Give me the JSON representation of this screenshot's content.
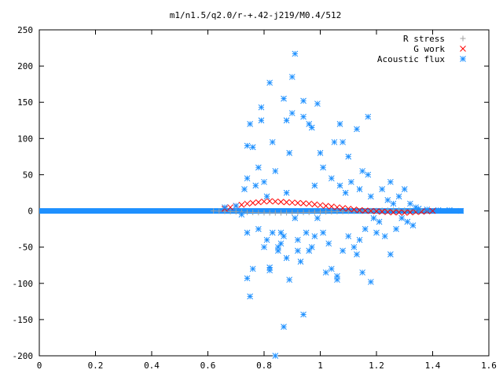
{
  "chart_data": {
    "type": "scatter",
    "title": "m1/n1.5/q2.0/r-+.42-j219/M0.4/512",
    "xlabel": "",
    "ylabel": "",
    "xlim": [
      0,
      1.6
    ],
    "ylim": [
      -200,
      250
    ],
    "x_ticks": [
      "0",
      "0.2",
      "0.4",
      "0.6",
      "0.8",
      "1",
      "1.2",
      "1.4",
      "1.6"
    ],
    "y_ticks": [
      "250",
      "200",
      "150",
      "100",
      "50",
      "0",
      "-50",
      "-100",
      "-150",
      "-200"
    ],
    "grid": false,
    "legend_position": "top-right",
    "series": [
      {
        "name": "R stress",
        "color": "#a0a0a0",
        "marker": "plus",
        "points": [
          [
            0.62,
            0.0
          ],
          [
            0.64,
            -0.3
          ],
          [
            0.66,
            -0.6
          ],
          [
            0.68,
            -0.9
          ],
          [
            0.7,
            -1.2
          ],
          [
            0.72,
            -1.5
          ],
          [
            0.74,
            -1.8
          ],
          [
            0.76,
            -2.1
          ],
          [
            0.78,
            -2.3
          ],
          [
            0.8,
            -2.5
          ],
          [
            0.82,
            -2.6
          ],
          [
            0.84,
            -2.7
          ],
          [
            0.86,
            -2.7
          ],
          [
            0.88,
            -2.6
          ],
          [
            0.9,
            -2.5
          ],
          [
            0.92,
            -2.4
          ],
          [
            0.94,
            -2.2
          ],
          [
            0.96,
            -2.0
          ],
          [
            0.98,
            -1.8
          ],
          [
            1.0,
            -1.6
          ],
          [
            1.02,
            -1.4
          ],
          [
            1.04,
            -1.2
          ],
          [
            1.06,
            -1.0
          ],
          [
            1.08,
            -0.8
          ],
          [
            1.1,
            -0.6
          ],
          [
            1.12,
            -0.4
          ],
          [
            1.14,
            -0.2
          ],
          [
            1.16,
            0.0
          ],
          [
            1.18,
            0.3
          ],
          [
            1.2,
            0.5
          ],
          [
            1.22,
            0.8
          ],
          [
            1.24,
            1.0
          ],
          [
            1.26,
            1.1
          ],
          [
            1.28,
            1.1
          ],
          [
            1.3,
            1.0
          ],
          [
            1.32,
            0.8
          ],
          [
            1.34,
            0.5
          ],
          [
            1.36,
            0.2
          ],
          [
            1.38,
            0.0
          ]
        ]
      },
      {
        "name": "G work",
        "color": "#ff0000",
        "marker": "cross",
        "points": [
          [
            0.66,
            3.0
          ],
          [
            0.68,
            5.0
          ],
          [
            0.7,
            7.0
          ],
          [
            0.72,
            8.5
          ],
          [
            0.74,
            10.0
          ],
          [
            0.76,
            11.0
          ],
          [
            0.78,
            12.0
          ],
          [
            0.8,
            13.0
          ],
          [
            0.82,
            13.5
          ],
          [
            0.84,
            13.0
          ],
          [
            0.86,
            12.5
          ],
          [
            0.88,
            12.0
          ],
          [
            0.9,
            11.5
          ],
          [
            0.92,
            11.0
          ],
          [
            0.94,
            10.5
          ],
          [
            0.96,
            10.0
          ],
          [
            0.98,
            9.0
          ],
          [
            1.0,
            8.0
          ],
          [
            1.02,
            7.0
          ],
          [
            1.04,
            6.0
          ],
          [
            1.06,
            5.0
          ],
          [
            1.08,
            4.0
          ],
          [
            1.1,
            3.0
          ],
          [
            1.12,
            2.0
          ],
          [
            1.14,
            1.0
          ],
          [
            1.16,
            0.5
          ],
          [
            1.18,
            0.0
          ],
          [
            1.2,
            -0.5
          ],
          [
            1.22,
            -1.0
          ],
          [
            1.24,
            -1.5
          ],
          [
            1.26,
            -2.0
          ],
          [
            1.28,
            -2.0
          ],
          [
            1.3,
            -2.5
          ],
          [
            1.32,
            -2.0
          ],
          [
            1.34,
            -1.5
          ],
          [
            1.36,
            -1.0
          ],
          [
            1.38,
            -0.5
          ],
          [
            1.4,
            0.0
          ]
        ]
      },
      {
        "name": "Acoustic flux",
        "color": "#1e90ff",
        "marker": "star",
        "points": [
          [
            0.66,
            5
          ],
          [
            0.7,
            7
          ],
          [
            0.72,
            -5
          ],
          [
            0.73,
            30
          ],
          [
            0.74,
            -30
          ],
          [
            0.74,
            45
          ],
          [
            0.75,
            120
          ],
          [
            0.74,
            90
          ],
          [
            0.76,
            88
          ],
          [
            0.75,
            -118
          ],
          [
            0.74,
            -93
          ],
          [
            0.76,
            -80
          ],
          [
            0.77,
            35
          ],
          [
            0.78,
            -25
          ],
          [
            0.78,
            60
          ],
          [
            0.79,
            143
          ],
          [
            0.79,
            125
          ],
          [
            0.8,
            -50
          ],
          [
            0.8,
            40
          ],
          [
            0.81,
            20
          ],
          [
            0.81,
            -40
          ],
          [
            0.82,
            177
          ],
          [
            0.82,
            -78
          ],
          [
            0.82,
            -82
          ],
          [
            0.83,
            95
          ],
          [
            0.83,
            -30
          ],
          [
            0.84,
            -200
          ],
          [
            0.84,
            55
          ],
          [
            0.85,
            -55
          ],
          [
            0.85,
            -50
          ],
          [
            0.86,
            -30
          ],
          [
            0.86,
            -45
          ],
          [
            0.87,
            155
          ],
          [
            0.87,
            -160
          ],
          [
            0.87,
            -35
          ],
          [
            0.88,
            -65
          ],
          [
            0.88,
            125
          ],
          [
            0.88,
            25
          ],
          [
            0.89,
            80
          ],
          [
            0.89,
            -95
          ],
          [
            0.9,
            185
          ],
          [
            0.9,
            135
          ],
          [
            0.91,
            217
          ],
          [
            0.91,
            -10
          ],
          [
            0.92,
            -55
          ],
          [
            0.92,
            -40
          ],
          [
            0.93,
            -70
          ],
          [
            0.94,
            152
          ],
          [
            0.94,
            130
          ],
          [
            0.94,
            -143
          ],
          [
            0.95,
            -30
          ],
          [
            0.96,
            120
          ],
          [
            0.96,
            -55
          ],
          [
            0.97,
            115
          ],
          [
            0.97,
            -50
          ],
          [
            0.98,
            35
          ],
          [
            0.98,
            -35
          ],
          [
            0.99,
            148
          ],
          [
            0.99,
            -10
          ],
          [
            1.0,
            80
          ],
          [
            1.01,
            60
          ],
          [
            1.01,
            -30
          ],
          [
            1.02,
            -85
          ],
          [
            1.03,
            -45
          ],
          [
            1.04,
            45
          ],
          [
            1.04,
            -80
          ],
          [
            1.05,
            95
          ],
          [
            1.06,
            -95
          ],
          [
            1.06,
            -90
          ],
          [
            1.07,
            120
          ],
          [
            1.07,
            35
          ],
          [
            1.08,
            95
          ],
          [
            1.08,
            -55
          ],
          [
            1.09,
            25
          ],
          [
            1.1,
            75
          ],
          [
            1.1,
            -35
          ],
          [
            1.11,
            40
          ],
          [
            1.12,
            -50
          ],
          [
            1.13,
            -60
          ],
          [
            1.13,
            113
          ],
          [
            1.14,
            30
          ],
          [
            1.14,
            -40
          ],
          [
            1.15,
            55
          ],
          [
            1.15,
            -85
          ],
          [
            1.16,
            -25
          ],
          [
            1.17,
            50
          ],
          [
            1.17,
            130
          ],
          [
            1.18,
            -98
          ],
          [
            1.18,
            20
          ],
          [
            1.19,
            -10
          ],
          [
            1.2,
            -30
          ],
          [
            1.21,
            -15
          ],
          [
            1.22,
            30
          ],
          [
            1.23,
            -35
          ],
          [
            1.24,
            15
          ],
          [
            1.25,
            40
          ],
          [
            1.25,
            -60
          ],
          [
            1.26,
            10
          ],
          [
            1.27,
            -25
          ],
          [
            1.28,
            20
          ],
          [
            1.29,
            -10
          ],
          [
            1.3,
            30
          ],
          [
            1.31,
            -15
          ],
          [
            1.32,
            10
          ],
          [
            1.33,
            -20
          ],
          [
            1.34,
            5
          ],
          [
            1.35,
            3
          ],
          [
            1.38,
            2
          ],
          [
            1.42,
            1
          ],
          [
            1.46,
            1
          ],
          [
            1.5,
            0
          ]
        ]
      }
    ],
    "baseline_band": {
      "series": "Acoustic flux",
      "x_start": 0.0,
      "x_end": 1.51,
      "y": 0
    }
  }
}
